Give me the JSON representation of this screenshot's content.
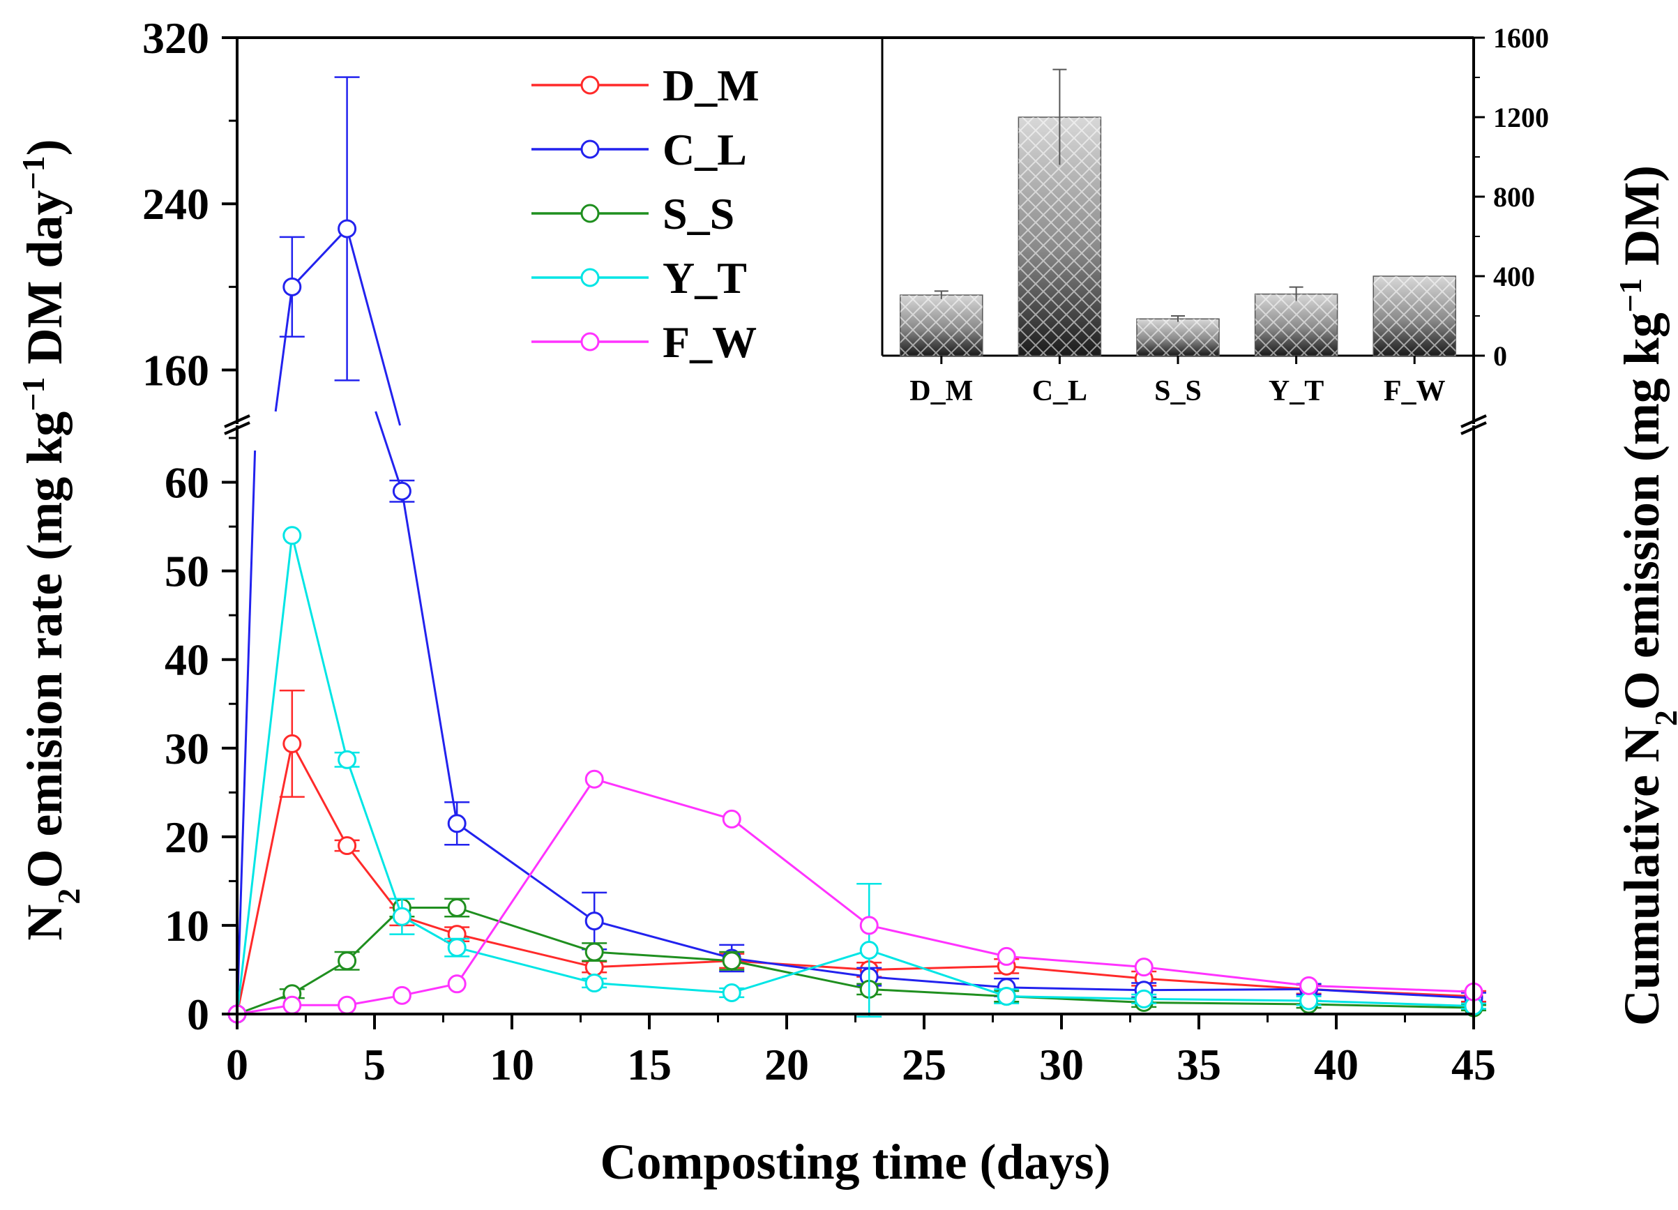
{
  "chart_data": {
    "type": "line",
    "title": "",
    "xlabel": "Composting time (days)",
    "ylabel": "N2O emision rate (mg kg-1 DM day-1)",
    "ylabel_right": "Cumulative N2O emission (mg kg-1 DM)",
    "xlim": [
      0,
      45
    ],
    "xticks": [
      "0",
      "5",
      "10",
      "15",
      "20",
      "25",
      "30",
      "35",
      "40",
      "45"
    ],
    "ylim_lower": [
      0,
      65
    ],
    "ylim_upper": [
      140,
      320
    ],
    "yticks_lower": [
      "0",
      "10",
      "20",
      "30",
      "40",
      "50",
      "60"
    ],
    "yticks_upper": [
      "160",
      "240",
      "320"
    ],
    "axis_break": "between 65 and 140",
    "legend_position": "top-center",
    "x": [
      0,
      2,
      4,
      6,
      8,
      13,
      18,
      23,
      28,
      33,
      39,
      45
    ],
    "series": [
      {
        "name": "D_M",
        "color": "#ff2a2a",
        "values": [
          0,
          30.5,
          19,
          11,
          9,
          5.3,
          6,
          5,
          5.4,
          4,
          2.8,
          2
        ],
        "errors": [
          0,
          6,
          0.6,
          1,
          0.8,
          0.6,
          0.8,
          0.8,
          0.8,
          0.8,
          0.5,
          0.6
        ]
      },
      {
        "name": "C_L",
        "color": "#2222ee",
        "values": [
          0,
          200,
          228,
          59,
          21.5,
          10.5,
          6.3,
          4.2,
          3,
          2.7,
          2.8,
          1.8
        ],
        "errors": [
          0,
          24,
          73,
          1.2,
          2.4,
          3.2,
          1.5,
          1,
          1,
          0.8,
          0.6,
          0.6
        ]
      },
      {
        "name": "S_S",
        "color": "#1f8f1f",
        "values": [
          0,
          2.3,
          6,
          12,
          12,
          7,
          6,
          2.8,
          2,
          1.3,
          1.1,
          0.7
        ],
        "errors": [
          0,
          0.5,
          1,
          1,
          1,
          1,
          1,
          0.6,
          0.6,
          0.5,
          0.4,
          0.3
        ]
      },
      {
        "name": "Y_T",
        "color": "#00e5e5",
        "values": [
          0,
          54,
          28.7,
          11,
          7.5,
          3.5,
          2.4,
          7.2,
          2,
          1.7,
          1.5,
          0.9
        ],
        "errors": [
          0,
          0,
          0.8,
          2,
          1,
          0.5,
          0.5,
          7.5,
          0.8,
          0.5,
          0.5,
          0.3
        ]
      },
      {
        "name": "F_W",
        "color": "#ff33ff",
        "values": [
          0,
          1,
          1,
          2.1,
          3.4,
          26.5,
          22,
          10,
          6.5,
          5.3,
          3.2,
          2.5
        ],
        "errors": [
          0,
          0,
          0,
          0,
          0,
          0,
          0,
          0,
          0,
          0,
          0,
          0
        ]
      }
    ],
    "inset": {
      "type": "bar",
      "categories": [
        "D_M",
        "C_L",
        "S_S",
        "Y_T",
        "F_W"
      ],
      "values": [
        305,
        1200,
        185,
        310,
        400
      ],
      "errors": [
        20,
        240,
        15,
        35,
        0
      ],
      "ylim": [
        0,
        1600
      ],
      "yticks": [
        "0",
        "400",
        "800",
        "1200",
        "1600"
      ]
    }
  }
}
